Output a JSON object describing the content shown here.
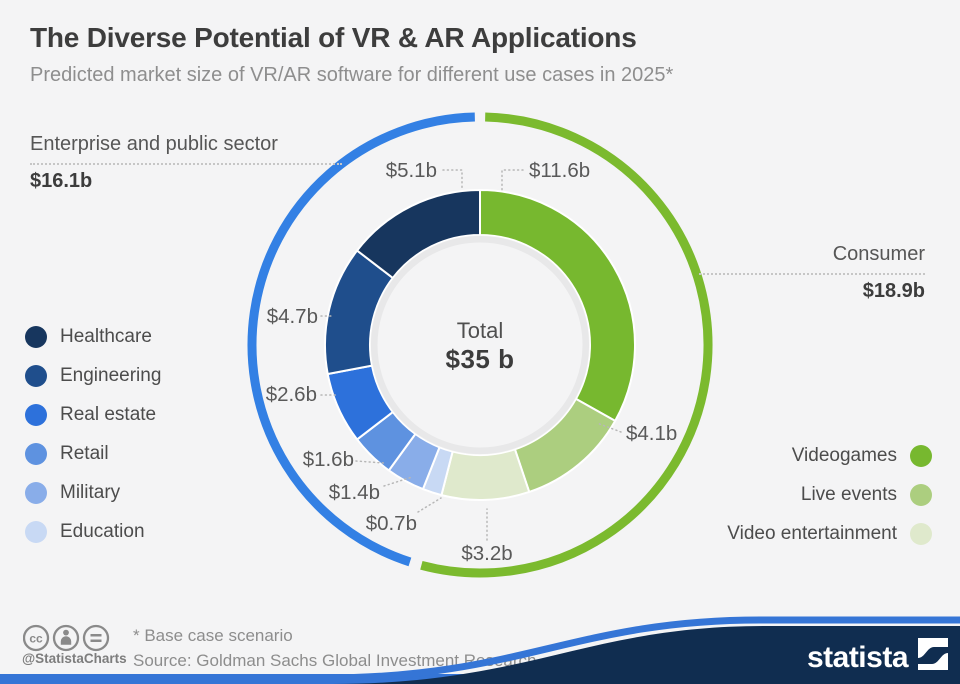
{
  "header": {
    "title": "The Diverse Potential of VR & AR Applications",
    "subtitle": "Predicted market size of VR/AR software for different use cases in 2025*"
  },
  "chart_data": {
    "type": "pie",
    "title": "Predicted market size of VR/AR software for different use cases in 2025",
    "center": {
      "label": "Total",
      "value_label": "$35 b",
      "value": 35
    },
    "groups": [
      {
        "name": "Consumer",
        "value": 18.9,
        "value_label": "$18.9b",
        "color": "#7bba2e"
      },
      {
        "name": "Enterprise and public sector",
        "value": 16.1,
        "value_label": "$16.1b",
        "color": "#3380e4"
      }
    ],
    "slices": [
      {
        "name": "Videogames",
        "value": 11.6,
        "label": "$11.6b",
        "color": "#77b82f",
        "group": "Consumer"
      },
      {
        "name": "Live events",
        "value": 4.1,
        "label": "$4.1b",
        "color": "#acce7f",
        "group": "Consumer"
      },
      {
        "name": "Video entertainment",
        "value": 3.2,
        "label": "$3.2b",
        "color": "#dfe9cc",
        "group": "Consumer"
      },
      {
        "name": "Education",
        "value": 0.7,
        "label": "$0.7b",
        "color": "#c8d9f4",
        "group": "Enterprise and public sector"
      },
      {
        "name": "Military",
        "value": 1.4,
        "label": "$1.4b",
        "color": "#89ade9",
        "group": "Enterprise and public sector"
      },
      {
        "name": "Retail",
        "value": 1.6,
        "label": "$1.6b",
        "color": "#5e92e0",
        "group": "Enterprise and public sector"
      },
      {
        "name": "Real estate",
        "value": 2.6,
        "label": "$2.6b",
        "color": "#2d71db",
        "group": "Enterprise and public sector"
      },
      {
        "name": "Engineering",
        "value": 4.7,
        "label": "$4.7b",
        "color": "#1f4e8c",
        "group": "Enterprise and public sector"
      },
      {
        "name": "Healthcare",
        "value": 5.1,
        "label": "$5.1b",
        "color": "#17365e",
        "group": "Enterprise and public sector"
      }
    ]
  },
  "legend_left": {
    "items": [
      {
        "label": "Healthcare",
        "color": "#17365e"
      },
      {
        "label": "Engineering",
        "color": "#1f4e8c"
      },
      {
        "label": "Real estate",
        "color": "#2d71db"
      },
      {
        "label": "Retail",
        "color": "#5e92e0"
      },
      {
        "label": "Military",
        "color": "#89ade9"
      },
      {
        "label": "Education",
        "color": "#c8d9f4"
      }
    ]
  },
  "legend_right": {
    "items": [
      {
        "label": "Videogames",
        "color": "#77b82f"
      },
      {
        "label": "Live events",
        "color": "#acce7f"
      },
      {
        "label": "Video entertainment",
        "color": "#dfe9cc"
      }
    ]
  },
  "footer": {
    "footnote": "* Base case scenario",
    "source": "Source: Goldman Sachs Global Investment Research",
    "handle": "@StatistaCharts",
    "brand": "statista",
    "colors": {
      "bar_blue": "#3575d6",
      "wave_navy": "#102d50"
    }
  }
}
